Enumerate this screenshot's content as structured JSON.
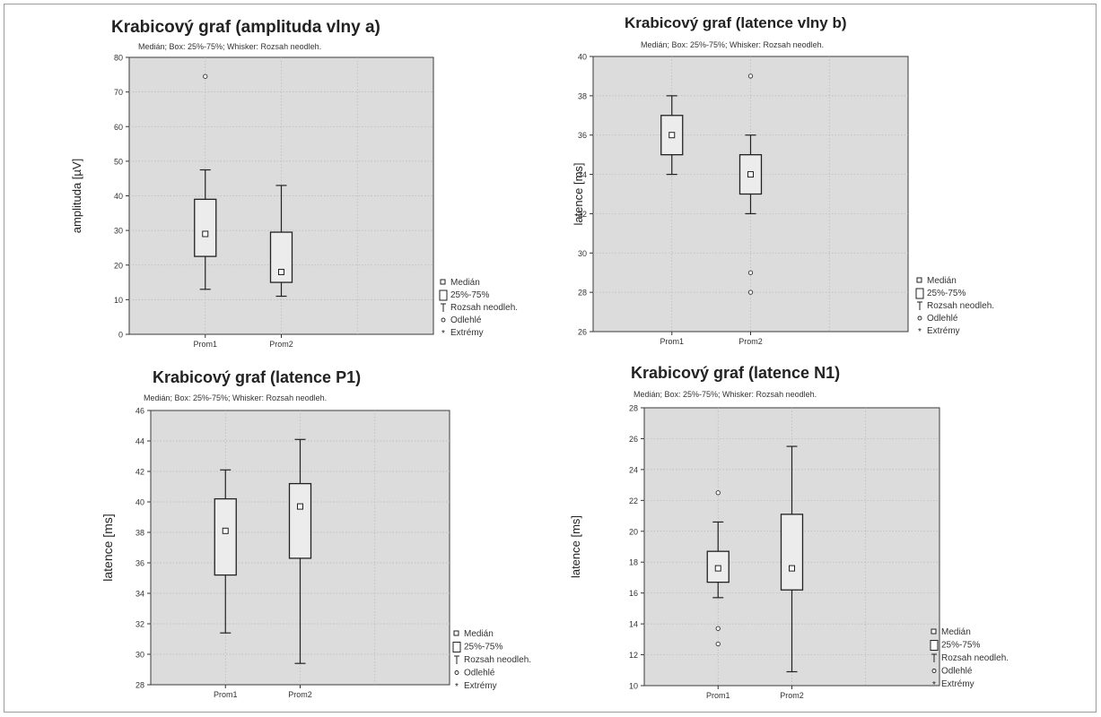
{
  "chart_data": [
    {
      "type": "box",
      "title": "Krabicový graf (amplituda vlny a)",
      "subtitle": "Medián; Box: 25%-75%; Whisker: Rozsah neodleh.",
      "ylabel": "amplituda [µV]",
      "ylim": [
        0,
        80
      ],
      "yticks": [
        0,
        10,
        20,
        30,
        40,
        50,
        60,
        70,
        80
      ],
      "categories": [
        "Prom1",
        "Prom2"
      ],
      "boxes": [
        {
          "name": "Prom1",
          "median": 29,
          "q1": 22.5,
          "q3": 39,
          "min": 13,
          "max": 47.5,
          "outliers": [
            74.5
          ],
          "extremes": []
        },
        {
          "name": "Prom2",
          "median": 18,
          "q1": 15,
          "q3": 29.5,
          "min": 11,
          "max": 43,
          "outliers": [],
          "extremes": []
        }
      ],
      "legend": [
        "Medián",
        "25%-75%",
        "Rozsah neodleh.",
        "Odlehlé",
        "Extrémy"
      ]
    },
    {
      "type": "box",
      "title": "Krabicový graf (latence vlny b)",
      "subtitle": "Medián; Box: 25%-75%; Whisker: Rozsah neodleh.",
      "ylabel": "latence [ms]",
      "ylim": [
        26,
        40
      ],
      "yticks": [
        26,
        28,
        30,
        32,
        34,
        36,
        38,
        40
      ],
      "categories": [
        "Prom1",
        "Prom2"
      ],
      "boxes": [
        {
          "name": "Prom1",
          "median": 36,
          "q1": 35,
          "q3": 37,
          "min": 34,
          "max": 38,
          "outliers": [],
          "extremes": []
        },
        {
          "name": "Prom2",
          "median": 34,
          "q1": 33,
          "q3": 35,
          "min": 32,
          "max": 36,
          "outliers": [
            39,
            29,
            28
          ],
          "extremes": []
        }
      ],
      "legend": [
        "Medián",
        "25%-75%",
        "Rozsah neodleh.",
        "Odlehlé",
        "Extrémy"
      ]
    },
    {
      "type": "box",
      "title": "Krabicový graf (latence P1)",
      "subtitle": "Medián; Box: 25%-75%; Whisker: Rozsah neodleh.",
      "ylabel": "latence [ms]",
      "ylim": [
        28,
        46
      ],
      "yticks": [
        28,
        30,
        32,
        34,
        36,
        38,
        40,
        42,
        44,
        46
      ],
      "categories": [
        "Prom1",
        "Prom2"
      ],
      "boxes": [
        {
          "name": "Prom1",
          "median": 38.1,
          "q1": 35.2,
          "q3": 40.2,
          "min": 31.4,
          "max": 42.1,
          "outliers": [],
          "extremes": []
        },
        {
          "name": "Prom2",
          "median": 39.7,
          "q1": 36.3,
          "q3": 41.2,
          "min": 29.4,
          "max": 44.1,
          "outliers": [],
          "extremes": []
        }
      ],
      "legend": [
        "Medián",
        "25%-75%",
        "Rozsah neodleh.",
        "Odlehlé",
        "Extrémy"
      ]
    },
    {
      "type": "box",
      "title": "Krabicový graf (latence N1)",
      "subtitle": "Medián; Box: 25%-75%; Whisker: Rozsah neodleh.",
      "ylabel": "latence [ms]",
      "ylim": [
        10,
        28
      ],
      "yticks": [
        10,
        12,
        14,
        16,
        18,
        20,
        22,
        24,
        26,
        28
      ],
      "categories": [
        "Prom1",
        "Prom2"
      ],
      "boxes": [
        {
          "name": "Prom1",
          "median": 17.6,
          "q1": 16.7,
          "q3": 18.7,
          "min": 15.7,
          "max": 20.6,
          "outliers": [
            22.5,
            13.7,
            12.7
          ],
          "extremes": []
        },
        {
          "name": "Prom2",
          "median": 17.6,
          "q1": 16.2,
          "q3": 21.1,
          "min": 10.9,
          "max": 25.5,
          "outliers": [],
          "extremes": []
        }
      ],
      "legend": [
        "Medián",
        "25%-75%",
        "Rozsah neodleh.",
        "Odlehlé",
        "Extrémy"
      ]
    }
  ]
}
